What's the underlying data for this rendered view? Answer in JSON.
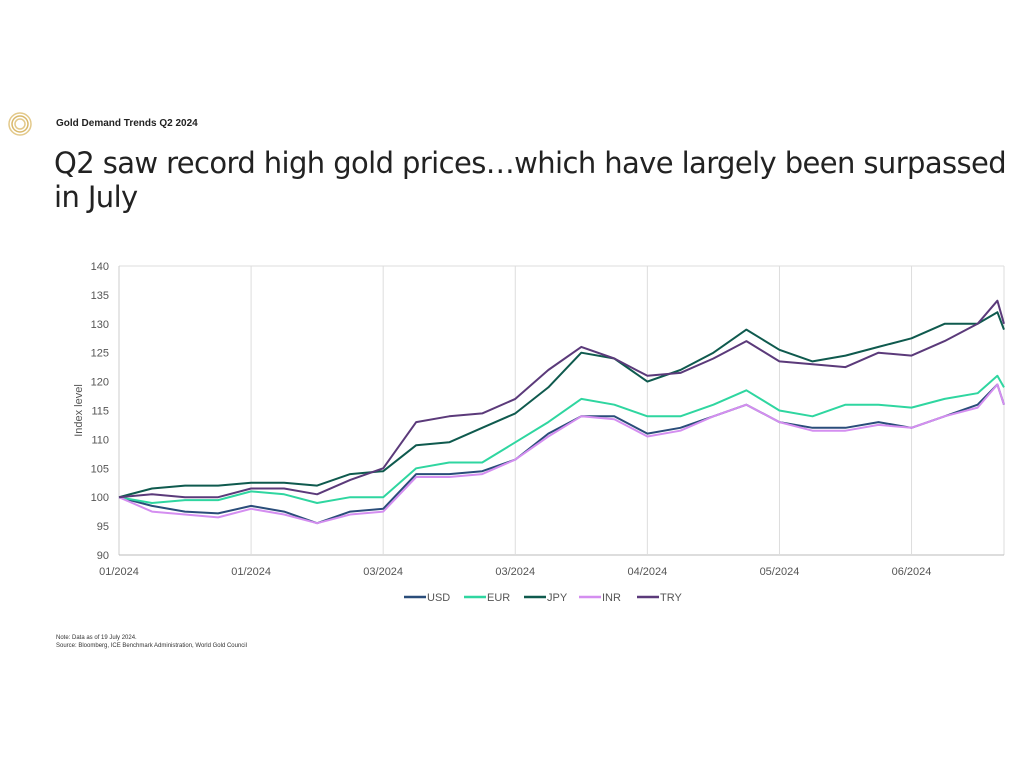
{
  "header": {
    "brand": "Gold Demand Trends Q2 2024",
    "logo_icon": "gold-rings-icon"
  },
  "title": "Q2 saw record high gold prices…which have largely been surpassed in July",
  "notes": {
    "note": "Note: Data as of 19 July 2024.",
    "source": "Source: Bloomberg, ICE Benchmark Administration, World Gold Council"
  },
  "chart_data": {
    "type": "line",
    "title": "",
    "xlabel": "",
    "ylabel": "Index level",
    "ylim": [
      90,
      140
    ],
    "yticks": [
      90,
      95,
      100,
      105,
      110,
      115,
      120,
      125,
      130,
      135,
      140
    ],
    "xlim": [
      0,
      134
    ],
    "xticks": [
      {
        "pos": 0,
        "label": "01/2024"
      },
      {
        "pos": 20,
        "label": "01/2024"
      },
      {
        "pos": 40,
        "label": "03/2024"
      },
      {
        "pos": 60,
        "label": "03/2024"
      },
      {
        "pos": 80,
        "label": "04/2024"
      },
      {
        "pos": 100,
        "label": "05/2024"
      },
      {
        "pos": 120,
        "label": "06/2024"
      }
    ],
    "grid": "vertical",
    "legend": "bottom",
    "x": [
      0,
      5,
      10,
      15,
      20,
      25,
      30,
      35,
      40,
      45,
      50,
      55,
      60,
      65,
      70,
      75,
      80,
      85,
      90,
      95,
      100,
      105,
      110,
      115,
      120,
      125,
      130,
      133,
      134
    ],
    "series": [
      {
        "name": "USD",
        "color": "#2a4d7a",
        "values": [
          100,
          98.5,
          97.5,
          97.2,
          98.5,
          97.5,
          95.5,
          97.5,
          98,
          104,
          104,
          104.5,
          106.5,
          111,
          114,
          114,
          111,
          112,
          114,
          116,
          113,
          112,
          112,
          113,
          112,
          114,
          116,
          119.5,
          116
        ]
      },
      {
        "name": "EUR",
        "color": "#2fd6a0",
        "values": [
          100,
          99,
          99.5,
          99.5,
          101,
          100.5,
          99,
          100,
          100,
          105,
          106,
          106,
          109.5,
          113,
          117,
          116,
          114,
          114,
          116,
          118.5,
          115,
          114,
          116,
          116,
          115.5,
          117,
          118,
          121,
          119
        ]
      },
      {
        "name": "JPY",
        "color": "#0f5a4e",
        "values": [
          100,
          101.5,
          102,
          102,
          102.5,
          102.5,
          102,
          104,
          104.5,
          109,
          109.5,
          112,
          114.5,
          119,
          125,
          124,
          120,
          122,
          125,
          129,
          125.5,
          123.5,
          124.5,
          126,
          127.5,
          130,
          130,
          132,
          129
        ]
      },
      {
        "name": "INR",
        "color": "#d48ef0",
        "values": [
          100,
          97.5,
          97,
          96.5,
          98,
          97,
          95.5,
          97,
          97.5,
          103.5,
          103.5,
          104,
          106.5,
          110.5,
          114,
          113.5,
          110.5,
          111.5,
          114,
          116,
          113,
          111.5,
          111.5,
          112.5,
          112,
          114,
          115.5,
          119.5,
          116
        ]
      },
      {
        "name": "TRY",
        "color": "#5b3a7a",
        "values": [
          100,
          100.5,
          100,
          100,
          101.5,
          101.5,
          100.5,
          103,
          105,
          113,
          114,
          114.5,
          117,
          122,
          126,
          124,
          121,
          121.5,
          124,
          127,
          123.5,
          123,
          122.5,
          125,
          124.5,
          127,
          130,
          134,
          130
        ]
      }
    ]
  }
}
